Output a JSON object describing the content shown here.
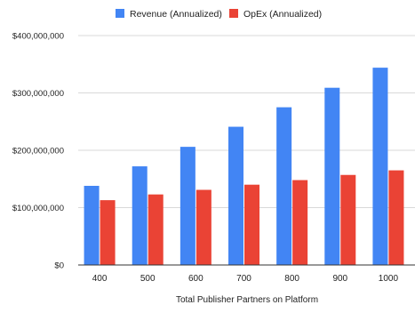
{
  "chart_data": {
    "type": "bar",
    "title": "",
    "xlabel": "Total Publisher Partners on Platform",
    "ylabel": "",
    "categories": [
      "400",
      "500",
      "600",
      "700",
      "800",
      "900",
      "1000"
    ],
    "series": [
      {
        "name": "Revenue (Annualized)",
        "color": "#4285f4",
        "values": [
          138000000,
          172000000,
          206000000,
          241000000,
          275000000,
          309000000,
          344000000
        ]
      },
      {
        "name": "OpEx (Annualized)",
        "color": "#ea4335",
        "values": [
          113000000,
          123000000,
          131000000,
          140000000,
          148000000,
          157000000,
          165000000
        ]
      }
    ],
    "ylim": [
      0,
      400000000
    ],
    "yticks": [
      {
        "value": 0,
        "label": "$0"
      },
      {
        "value": 100000000,
        "label": "$100,000,000"
      },
      {
        "value": 200000000,
        "label": "$200,000,000"
      },
      {
        "value": 300000000,
        "label": "$300,000,000"
      },
      {
        "value": 400000000,
        "label": "$400,000,000"
      }
    ],
    "grid": true,
    "legend_position": "top",
    "colors": {
      "gridline": "#d9d9d9",
      "axis": "#333333",
      "text": "#222222"
    }
  }
}
